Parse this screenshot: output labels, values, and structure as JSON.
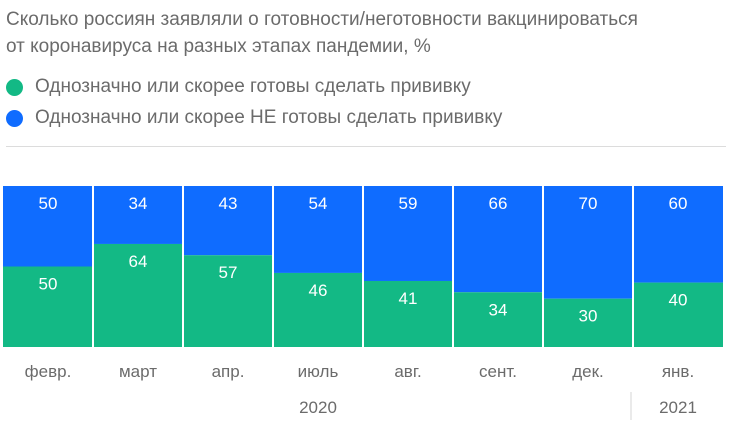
{
  "title_line1": "Сколько россиян заявляли о готовности/неготовности вакцинироваться",
  "title_line2": "от коронавируса на разных этапах пандемии, %",
  "legend": [
    {
      "label": "Однозначно или скорее готовы сделать прививку",
      "color": "#13b985"
    },
    {
      "label": "Однозначно или скорее НЕ готовы сделать прививку",
      "color": "#0f6cff"
    }
  ],
  "chart_data": {
    "type": "bar",
    "stacked": true,
    "categories": [
      "февр.",
      "март",
      "апр.",
      "июль",
      "авг.",
      "сент.",
      "дек.",
      "янв."
    ],
    "series": [
      {
        "name": "Однозначно или скорее готовы сделать прививку",
        "color": "#13b985",
        "values": [
          50,
          64,
          57,
          46,
          41,
          34,
          30,
          40
        ]
      },
      {
        "name": "Однозначно или скорее НЕ готовы сделать прививку",
        "color": "#0f6cff",
        "values": [
          50,
          34,
          43,
          54,
          59,
          66,
          70,
          60
        ]
      }
    ],
    "year_labels": [
      {
        "label": "2020",
        "from": 0,
        "to": 6
      },
      {
        "label": "2021",
        "from": 7,
        "to": 7
      }
    ],
    "ylim": [
      0,
      100
    ],
    "title": "Сколько россиян заявляли о готовности/неготовности вакцинироваться от коронавируса на разных этапах пандемии, %"
  }
}
